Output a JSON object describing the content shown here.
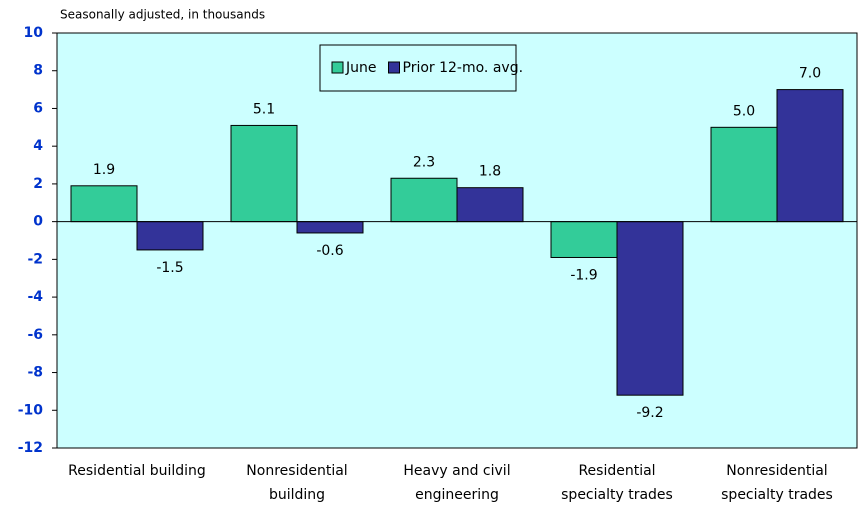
{
  "chart_data": {
    "type": "bar",
    "subtitle": "Seasonally adjusted, in thousands",
    "categories": [
      "Residential building",
      "Nonresidential\nbuilding",
      "Heavy and civil\nengineering",
      "Residential\nspecialty trades",
      "Nonresidential\nspecialty trades"
    ],
    "series": [
      {
        "name": "June",
        "color": "#33cc99",
        "values": [
          1.9,
          5.1,
          2.3,
          -1.9,
          5.0
        ],
        "value_labels": [
          "1.9",
          "5.1",
          "2.3",
          "-1.9",
          "5.0"
        ]
      },
      {
        "name": "Prior 12-mo. avg.",
        "color": "#333399",
        "values": [
          -1.5,
          -0.6,
          1.8,
          -9.2,
          7.0
        ],
        "value_labels": [
          "-1.5",
          "-0.6",
          "1.8",
          "-9.2",
          "7.0"
        ]
      }
    ],
    "ylim": [
      -12,
      10
    ],
    "yticks": [
      10,
      8,
      6,
      4,
      2,
      0,
      -2,
      -4,
      -6,
      -8,
      -10,
      -12
    ],
    "plot_background": "#ccffff",
    "legend": "top"
  }
}
